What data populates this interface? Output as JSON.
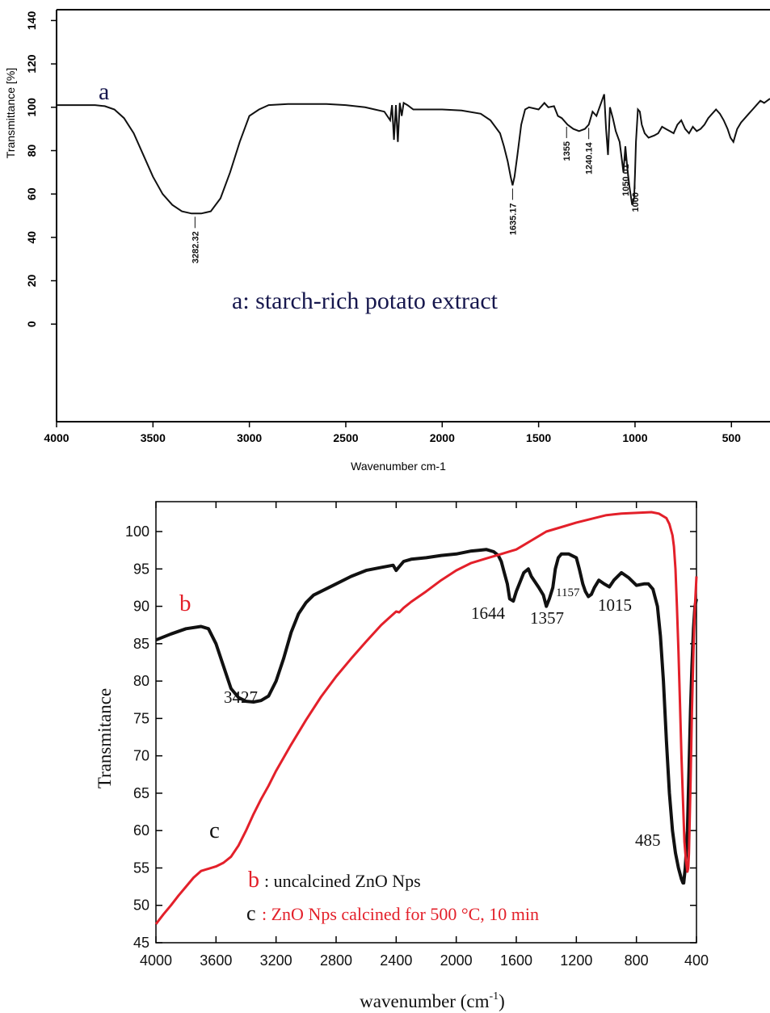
{
  "chart_data": [
    {
      "type": "line",
      "panel_letter": "a",
      "caption": "a: starch-rich potato extract",
      "xlabel": "Wavenumber cm-1",
      "ylabel": "Transmittance [%]",
      "xlim": [
        4000,
        300
      ],
      "ylim": [
        -45,
        145
      ],
      "xticks": [
        4000,
        3500,
        3000,
        2500,
        2000,
        1500,
        1000,
        500
      ],
      "yticks": [
        0,
        20,
        40,
        60,
        80,
        100,
        120,
        140
      ],
      "colors": {
        "curve": "#111111",
        "panel_text": "#16174d",
        "axis": "#000000"
      },
      "series": [
        {
          "x": [
            4000,
            3800,
            3750,
            3700,
            3650,
            3600,
            3550,
            3500,
            3450,
            3400,
            3350,
            3300,
            3250,
            3200,
            3150,
            3100,
            3050,
            3000,
            2950,
            2900,
            2800,
            2700,
            2600,
            2500,
            2400,
            2350,
            2300,
            2270,
            2260,
            2250,
            2240,
            2230,
            2220,
            2210,
            2200,
            2180,
            2150,
            2100,
            2000,
            1900,
            1800,
            1750,
            1700,
            1680,
            1660,
            1645,
            1635,
            1625,
            1610,
            1590,
            1570,
            1550,
            1500,
            1470,
            1450,
            1420,
            1400,
            1380,
            1350,
            1320,
            1290,
            1260,
            1240,
            1220,
            1200,
            1180,
            1160,
            1150,
            1140,
            1130,
            1115,
            1100,
            1080,
            1060,
            1050,
            1040,
            1030,
            1015,
            1005,
            1000,
            995,
            985,
            975,
            965,
            950,
            930,
            900,
            880,
            860,
            840,
            820,
            800,
            780,
            760,
            740,
            720,
            700,
            680,
            660,
            640,
            620,
            600,
            580,
            560,
            540,
            520,
            505,
            490,
            480,
            470,
            450,
            430,
            410,
            390,
            370,
            350,
            330,
            300
          ],
          "y": [
            101,
            101,
            100.5,
            99,
            95,
            88,
            78,
            68,
            60,
            55,
            52,
            51,
            51,
            52,
            58,
            70,
            84,
            96,
            99,
            101,
            101.5,
            101.5,
            101.5,
            101,
            100,
            99,
            98,
            94,
            101,
            85,
            101,
            84,
            102,
            96,
            102,
            101,
            99,
            99,
            99,
            98.5,
            97,
            94,
            88,
            82,
            75,
            68,
            64,
            68,
            78,
            92,
            99,
            100,
            99,
            102,
            100,
            100.5,
            96,
            95,
            92,
            90,
            89,
            90,
            92,
            98,
            96,
            101,
            106,
            90,
            78,
            100,
            95,
            89,
            84,
            70,
            82,
            72,
            64,
            55,
            58,
            69,
            84,
            99,
            98,
            92,
            88,
            86,
            87,
            88,
            91,
            90,
            89,
            88,
            92,
            94,
            90,
            88,
            91,
            89,
            90,
            92,
            95,
            97,
            99,
            97,
            94,
            90,
            86,
            84,
            87,
            90,
            93,
            95,
            97,
            99,
            101,
            103,
            102,
            104
          ]
        }
      ],
      "annotations": [
        {
          "label": "3282.32",
          "x": 3282
        },
        {
          "label": "1635.17",
          "x": 1635
        },
        {
          "label": "1355",
          "x": 1355
        },
        {
          "label": "1240.14",
          "x": 1240
        },
        {
          "label": "1050.01",
          "x": 1050
        },
        {
          "label": "1000",
          "x": 1000
        }
      ]
    },
    {
      "type": "line",
      "xlabel": "wavenumber (cm",
      "xlabel_sup": "-1",
      "xlabel_end": ")",
      "ylabel": "Transmitance",
      "xlim": [
        4000,
        400
      ],
      "ylim": [
        45,
        104
      ],
      "xticks": [
        4000,
        3600,
        3200,
        2800,
        2400,
        2000,
        1600,
        1200,
        800,
        400
      ],
      "yticks": [
        45,
        50,
        55,
        60,
        65,
        70,
        75,
        80,
        85,
        90,
        95,
        100
      ],
      "colors": {
        "b": "#e3202a",
        "c": "#111111",
        "axis": "#000000"
      },
      "series": [
        {
          "name": "c",
          "x": [
            4000,
            3900,
            3800,
            3700,
            3650,
            3600,
            3550,
            3500,
            3450,
            3400,
            3350,
            3300,
            3250,
            3200,
            3150,
            3100,
            3050,
            3000,
            2950,
            2900,
            2800,
            2700,
            2600,
            2500,
            2420,
            2400,
            2380,
            2350,
            2300,
            2200,
            2100,
            2000,
            1900,
            1850,
            1800,
            1750,
            1720,
            1700,
            1680,
            1660,
            1644,
            1620,
            1600,
            1550,
            1520,
            1500,
            1450,
            1420,
            1400,
            1380,
            1357,
            1340,
            1320,
            1300,
            1250,
            1200,
            1180,
            1157,
            1140,
            1120,
            1100,
            1080,
            1050,
            1015,
            980,
            950,
            900,
            850,
            800,
            750,
            720,
            690,
            660,
            640,
            620,
            600,
            580,
            560,
            540,
            520,
            500,
            490,
            485,
            475,
            460,
            450,
            440,
            430,
            420,
            410,
            400
          ],
          "y": [
            85.5,
            86.3,
            87,
            87.3,
            87,
            85,
            82,
            79,
            77.8,
            77.3,
            77.2,
            77.4,
            78,
            80,
            83,
            86.5,
            89,
            90.5,
            91.5,
            92,
            93,
            94,
            94.8,
            95.2,
            95.5,
            94.8,
            95.3,
            96,
            96.3,
            96.5,
            96.8,
            97,
            97.4,
            97.5,
            97.6,
            97.3,
            96.8,
            96,
            94.5,
            93,
            91,
            90.7,
            92,
            94.5,
            95,
            94,
            92.5,
            91.5,
            90,
            91,
            92.5,
            95,
            96.5,
            97,
            97,
            96.5,
            95,
            93,
            92,
            91.3,
            91.6,
            92.5,
            93.5,
            93,
            92.6,
            93.5,
            94.5,
            93.8,
            92.8,
            93,
            93,
            92.3,
            90,
            86,
            80,
            72,
            65,
            60,
            57,
            55,
            53.5,
            53,
            53,
            55,
            60,
            68,
            76,
            82,
            87,
            90,
            91
          ]
        },
        {
          "name": "b",
          "x": [
            4000,
            3950,
            3900,
            3850,
            3800,
            3750,
            3700,
            3650,
            3600,
            3550,
            3500,
            3450,
            3400,
            3350,
            3300,
            3250,
            3200,
            3100,
            3000,
            2900,
            2800,
            2700,
            2600,
            2500,
            2450,
            2400,
            2380,
            2350,
            2300,
            2200,
            2100,
            2000,
            1900,
            1800,
            1700,
            1600,
            1550,
            1500,
            1450,
            1400,
            1300,
            1200,
            1100,
            1000,
            900,
            800,
            700,
            650,
            600,
            580,
            560,
            550,
            540,
            530,
            520,
            510,
            500,
            490,
            480,
            470,
            460,
            455,
            450,
            440,
            430,
            420,
            410,
            400
          ],
          "y": [
            47.5,
            48.8,
            50,
            51.3,
            52.5,
            53.7,
            54.6,
            54.9,
            55.2,
            55.7,
            56.5,
            58,
            60,
            62.2,
            64.2,
            66,
            68,
            71.5,
            74.8,
            77.9,
            80.6,
            83,
            85.3,
            87.5,
            88.4,
            89.3,
            89.2,
            89.8,
            90.6,
            92,
            93.5,
            94.8,
            95.8,
            96.4,
            97,
            97.6,
            98.2,
            98.8,
            99.4,
            100,
            100.6,
            101.2,
            101.7,
            102.2,
            102.4,
            102.5,
            102.6,
            102.4,
            101.8,
            101,
            99.5,
            98,
            95,
            90,
            84,
            77,
            70,
            64,
            58.5,
            56,
            54.5,
            55,
            57,
            66,
            76,
            84,
            90,
            94
          ]
        }
      ],
      "labels": {
        "b_on_plot": "b",
        "c_on_plot": "c",
        "legend_b_key": "b",
        "legend_b_text": ": uncalcined ZnO Nps",
        "legend_c_key": "c",
        "legend_c_text": ": ZnO Nps calcined for 500 °C, 10 min"
      },
      "annotations": [
        {
          "label": "3427"
        },
        {
          "label": "1644"
        },
        {
          "label": "1357"
        },
        {
          "label": "1157"
        },
        {
          "label": "1015"
        },
        {
          "label": "485"
        }
      ]
    }
  ]
}
